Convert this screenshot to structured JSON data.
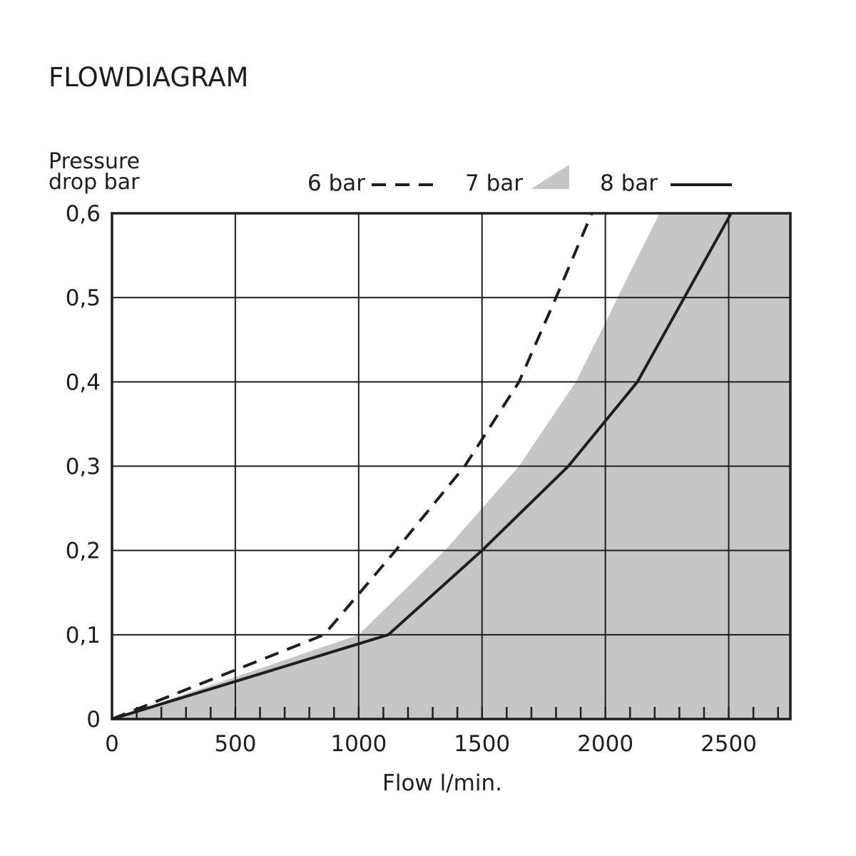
{
  "chart_data": {
    "type": "line",
    "title": "FLOWDIAGRAM",
    "ylabel": [
      "Pressure",
      "drop bar"
    ],
    "xlabel": "Flow l/min.",
    "xlim": [
      0,
      2750
    ],
    "ylim": [
      0,
      0.6
    ],
    "x_ticks": [
      {
        "value": 0,
        "label": "0"
      },
      {
        "value": 500,
        "label": "500"
      },
      {
        "value": 1000,
        "label": "1000"
      },
      {
        "value": 1500,
        "label": "1500"
      },
      {
        "value": 2000,
        "label": "2000"
      },
      {
        "value": 2500,
        "label": "2500"
      }
    ],
    "y_ticks": [
      {
        "value": 0,
        "label": "0"
      },
      {
        "value": 0.1,
        "label": "0,1"
      },
      {
        "value": 0.2,
        "label": "0,2"
      },
      {
        "value": 0.3,
        "label": "0,3"
      },
      {
        "value": 0.4,
        "label": "0,4"
      },
      {
        "value": 0.5,
        "label": "0,5"
      },
      {
        "value": 0.6,
        "label": "0,6"
      }
    ],
    "minor_x_step": 100,
    "grid": true,
    "legend_position": "top",
    "series": [
      {
        "name": "6 bar",
        "style": "dashed",
        "color": "#1e1e1e",
        "points": [
          [
            0,
            0
          ],
          [
            860,
            0.1
          ],
          [
            1150,
            0.2
          ],
          [
            1430,
            0.3
          ],
          [
            1650,
            0.4
          ],
          [
            1800,
            0.5
          ],
          [
            1945,
            0.6
          ]
        ]
      },
      {
        "name": "7 bar",
        "style": "area",
        "color": "#c6c6c6",
        "points": [
          [
            0,
            0
          ],
          [
            1000,
            0.1
          ],
          [
            1350,
            0.2
          ],
          [
            1650,
            0.3
          ],
          [
            1880,
            0.4
          ],
          [
            2000,
            0.47
          ],
          [
            2100,
            0.53
          ],
          [
            2220,
            0.6
          ]
        ]
      },
      {
        "name": "8 bar",
        "style": "solid",
        "color": "#1e1e1e",
        "points": [
          [
            0,
            0
          ],
          [
            1120,
            0.1
          ],
          [
            1500,
            0.2
          ],
          [
            1850,
            0.3
          ],
          [
            2130,
            0.4
          ],
          [
            2320,
            0.5
          ],
          [
            2510,
            0.6
          ]
        ]
      }
    ]
  }
}
